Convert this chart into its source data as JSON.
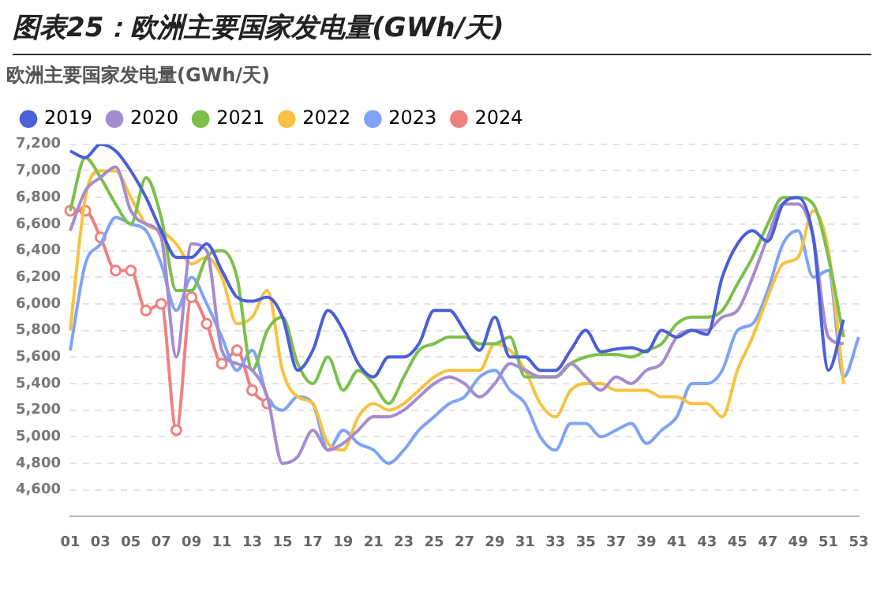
{
  "chart_data": {
    "type": "line",
    "title": "图表25：欧洲主要国家发电量(GWh/天)",
    "subtitle": "欧洲主要国家发电量(GWh/天)",
    "categories": [
      "01",
      null,
      "03",
      null,
      "05",
      null,
      "07",
      null,
      "09",
      null,
      "11",
      null,
      "13",
      null,
      "15",
      null,
      "17",
      null,
      "19",
      null,
      "21",
      null,
      "23",
      null,
      "25",
      null,
      "27",
      null,
      "29",
      null,
      "31",
      null,
      "33",
      null,
      "35",
      null,
      "37",
      null,
      "39",
      null,
      "41",
      null,
      "43",
      null,
      "45",
      null,
      "47",
      null,
      "49",
      null,
      "51",
      null,
      "53"
    ],
    "ylim": [
      4400,
      7200
    ],
    "yticks": [
      {
        "value": 4600,
        "label": "4,600"
      },
      {
        "value": 4800,
        "label": "4,800"
      },
      {
        "value": 5000,
        "label": "5,000"
      },
      {
        "value": 5200,
        "label": "5,200"
      },
      {
        "value": 5400,
        "label": "5,400"
      },
      {
        "value": 5600,
        "label": "5,600"
      },
      {
        "value": 5800,
        "label": "5,800"
      },
      {
        "value": 6000,
        "label": "6,000"
      },
      {
        "value": 6200,
        "label": "6,200"
      },
      {
        "value": 6400,
        "label": "6,400"
      },
      {
        "value": 6600,
        "label": "6,600"
      },
      {
        "value": 6800,
        "label": "6,800"
      },
      {
        "value": 7000,
        "label": "7,000"
      },
      {
        "value": 7200,
        "label": "7,200"
      }
    ],
    "grid": "y",
    "legend": "top left",
    "line_style": "solid",
    "series": [
      {
        "name": "2019",
        "color": "#4a5fd8",
        "marker": "none",
        "values": [
          7150,
          7100,
          7200,
          7150,
          7000,
          6800,
          6550,
          6350,
          6350,
          6450,
          6250,
          6050,
          6020,
          6050,
          5900,
          5500,
          5650,
          5950,
          5800,
          5550,
          5450,
          5600,
          5600,
          5700,
          5950,
          5950,
          5800,
          5650,
          5900,
          5600,
          5600,
          5500,
          5500,
          5650,
          5800,
          5640,
          5660,
          5670,
          5640,
          5800,
          5750,
          5800,
          5770,
          6200,
          6450,
          6550,
          6470,
          6750,
          6800,
          6500,
          5500,
          5880,
          null
        ]
      },
      {
        "name": "2020",
        "color": "#a58ccf",
        "marker": "none",
        "values": [
          6550,
          6850,
          6950,
          7030,
          6700,
          6600,
          6500,
          5600,
          6450,
          6400,
          5650,
          5550,
          5500,
          5300,
          4800,
          4850,
          5050,
          4900,
          4950,
          5050,
          5150,
          5150,
          5200,
          5300,
          5400,
          5450,
          5400,
          5300,
          5400,
          5550,
          5500,
          5450,
          5450,
          5550,
          5450,
          5350,
          5450,
          5400,
          5500,
          5550,
          5750,
          5800,
          5800,
          5900,
          5950,
          6200,
          6500,
          6750,
          6750,
          6500,
          5750,
          5700,
          null
        ]
      },
      {
        "name": "2021",
        "color": "#7cc04b",
        "marker": "none",
        "values": [
          6700,
          7100,
          6950,
          6750,
          6600,
          6950,
          6650,
          6100,
          6100,
          6350,
          6400,
          6200,
          5500,
          5800,
          5900,
          5550,
          5400,
          5600,
          5350,
          5500,
          5400,
          5250,
          5450,
          5650,
          5700,
          5750,
          5750,
          5700,
          5700,
          5750,
          5450,
          5450,
          5450,
          5550,
          5600,
          5620,
          5620,
          5600,
          5650,
          5700,
          5850,
          5900,
          5900,
          5950,
          6150,
          6350,
          6600,
          6800,
          6800,
          6750,
          6350,
          5750,
          null
        ]
      },
      {
        "name": "2022",
        "color": "#f7c242",
        "marker": "none",
        "values": [
          5800,
          6800,
          7000,
          7000,
          6800,
          6600,
          6550,
          6450,
          6300,
          6350,
          6200,
          5850,
          5900,
          6100,
          5500,
          5300,
          5250,
          4950,
          4900,
          5150,
          5250,
          5200,
          5250,
          5350,
          5450,
          5500,
          5500,
          5500,
          5700,
          5650,
          5500,
          5250,
          5150,
          5350,
          5400,
          5400,
          5350,
          5350,
          5350,
          5300,
          5300,
          5250,
          5250,
          5150,
          5500,
          5750,
          6050,
          6300,
          6350,
          6700,
          6400,
          5400,
          null
        ]
      },
      {
        "name": "2023",
        "color": "#7fa3f5",
        "marker": "none",
        "values": [
          5650,
          6300,
          6450,
          6650,
          6600,
          6550,
          6300,
          5950,
          6200,
          6000,
          5750,
          5500,
          5650,
          5300,
          5200,
          5300,
          5250,
          4900,
          5050,
          4950,
          4900,
          4800,
          4900,
          5050,
          5150,
          5250,
          5300,
          5450,
          5500,
          5350,
          5250,
          5000,
          4900,
          5100,
          5100,
          5000,
          5050,
          5100,
          4950,
          5050,
          5150,
          5400,
          5400,
          5500,
          5800,
          5850,
          6100,
          6450,
          6550,
          6200,
          6250,
          5450,
          5750
        ]
      },
      {
        "name": "2024",
        "color": "#f08080",
        "marker": "circle",
        "values": [
          6700,
          6700,
          6500,
          6250,
          6250,
          5950,
          6000,
          5050,
          6050,
          5850,
          5550,
          5650,
          5350,
          5250,
          null,
          null,
          null,
          null,
          null,
          null,
          null,
          null,
          null,
          null,
          null,
          null,
          null,
          null,
          null,
          null,
          null,
          null,
          null,
          null,
          null,
          null,
          null,
          null,
          null,
          null,
          null,
          null,
          null,
          null,
          null,
          null,
          null,
          null,
          null,
          null,
          null,
          null,
          null
        ]
      }
    ]
  }
}
